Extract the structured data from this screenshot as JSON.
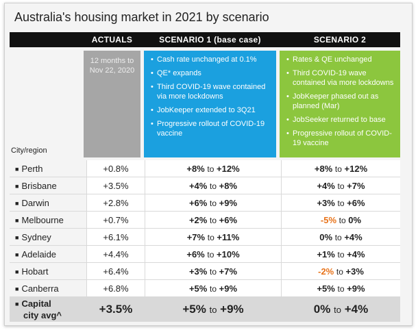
{
  "title": "Australia's housing market in 2021 by scenario",
  "headers": {
    "actuals": "ACTUALS",
    "scenario1": "SCENARIO 1 (base case)",
    "scenario2": "SCENARIO 2"
  },
  "actuals_note": "12 months to Nov 22, 2020",
  "scenario1_bullets": [
    "Cash rate unchanged at 0.1%",
    "QE* expands",
    "Third COVID-19 wave contained via more lockdowns",
    "JobKeeper extended to 3Q21",
    "Progressive rollout of COVID-19 vaccine"
  ],
  "scenario2_bullets": [
    "Rates & QE unchanged",
    "Third COVID-19 wave contained via more lockdowns",
    "JobKeeper phased out as planned (Mar)",
    "JobSeeker returned to base",
    "Progressive rollout of COVID-19 vaccine"
  ],
  "city_header": "City/region",
  "to_word": "to",
  "square": "■",
  "rows": [
    {
      "city": "Perth",
      "actual": "+0.8%",
      "s1_low": "+8%",
      "s1_high": "+12%",
      "s2_low": "+8%",
      "s2_high": "+12%"
    },
    {
      "city": "Brisbane",
      "actual": "+3.5%",
      "s1_low": "+4%",
      "s1_high": "+8%",
      "s2_low": "+4%",
      "s2_high": "+7%"
    },
    {
      "city": "Darwin",
      "actual": "+2.8%",
      "s1_low": "+6%",
      "s1_high": "+9%",
      "s2_low": "+3%",
      "s2_high": "+6%"
    },
    {
      "city": "Melbourne",
      "actual": "+0.7%",
      "s1_low": "+2%",
      "s1_high": "+6%",
      "s2_low": "-5%",
      "s2_high": "0%"
    },
    {
      "city": "Sydney",
      "actual": "+6.1%",
      "s1_low": "+7%",
      "s1_high": "+11%",
      "s2_low": "0%",
      "s2_high": "+4%"
    },
    {
      "city": "Adelaide",
      "actual": "+4.4%",
      "s1_low": "+6%",
      "s1_high": "+10%",
      "s2_low": "+1%",
      "s2_high": "+4%"
    },
    {
      "city": "Hobart",
      "actual": "+6.4%",
      "s1_low": "+3%",
      "s1_high": "+7%",
      "s2_low": "-2%",
      "s2_high": "+3%"
    },
    {
      "city": "Canberra",
      "actual": "+6.8%",
      "s1_low": "+5%",
      "s1_high": "+9%",
      "s2_low": "+5%",
      "s2_high": "+9%"
    }
  ],
  "avg": {
    "city_line1": "Capital",
    "city_line2": "city avg^",
    "actual": "+3.5%",
    "s1_low": "+5%",
    "s1_high": "+9%",
    "s2_low": "0%",
    "s2_high": "+4%"
  },
  "colors": {
    "scenario1": "#1ba0df",
    "scenario2": "#8cc63e",
    "actuals": "#a6a6a6",
    "negative": "#e8731a"
  }
}
